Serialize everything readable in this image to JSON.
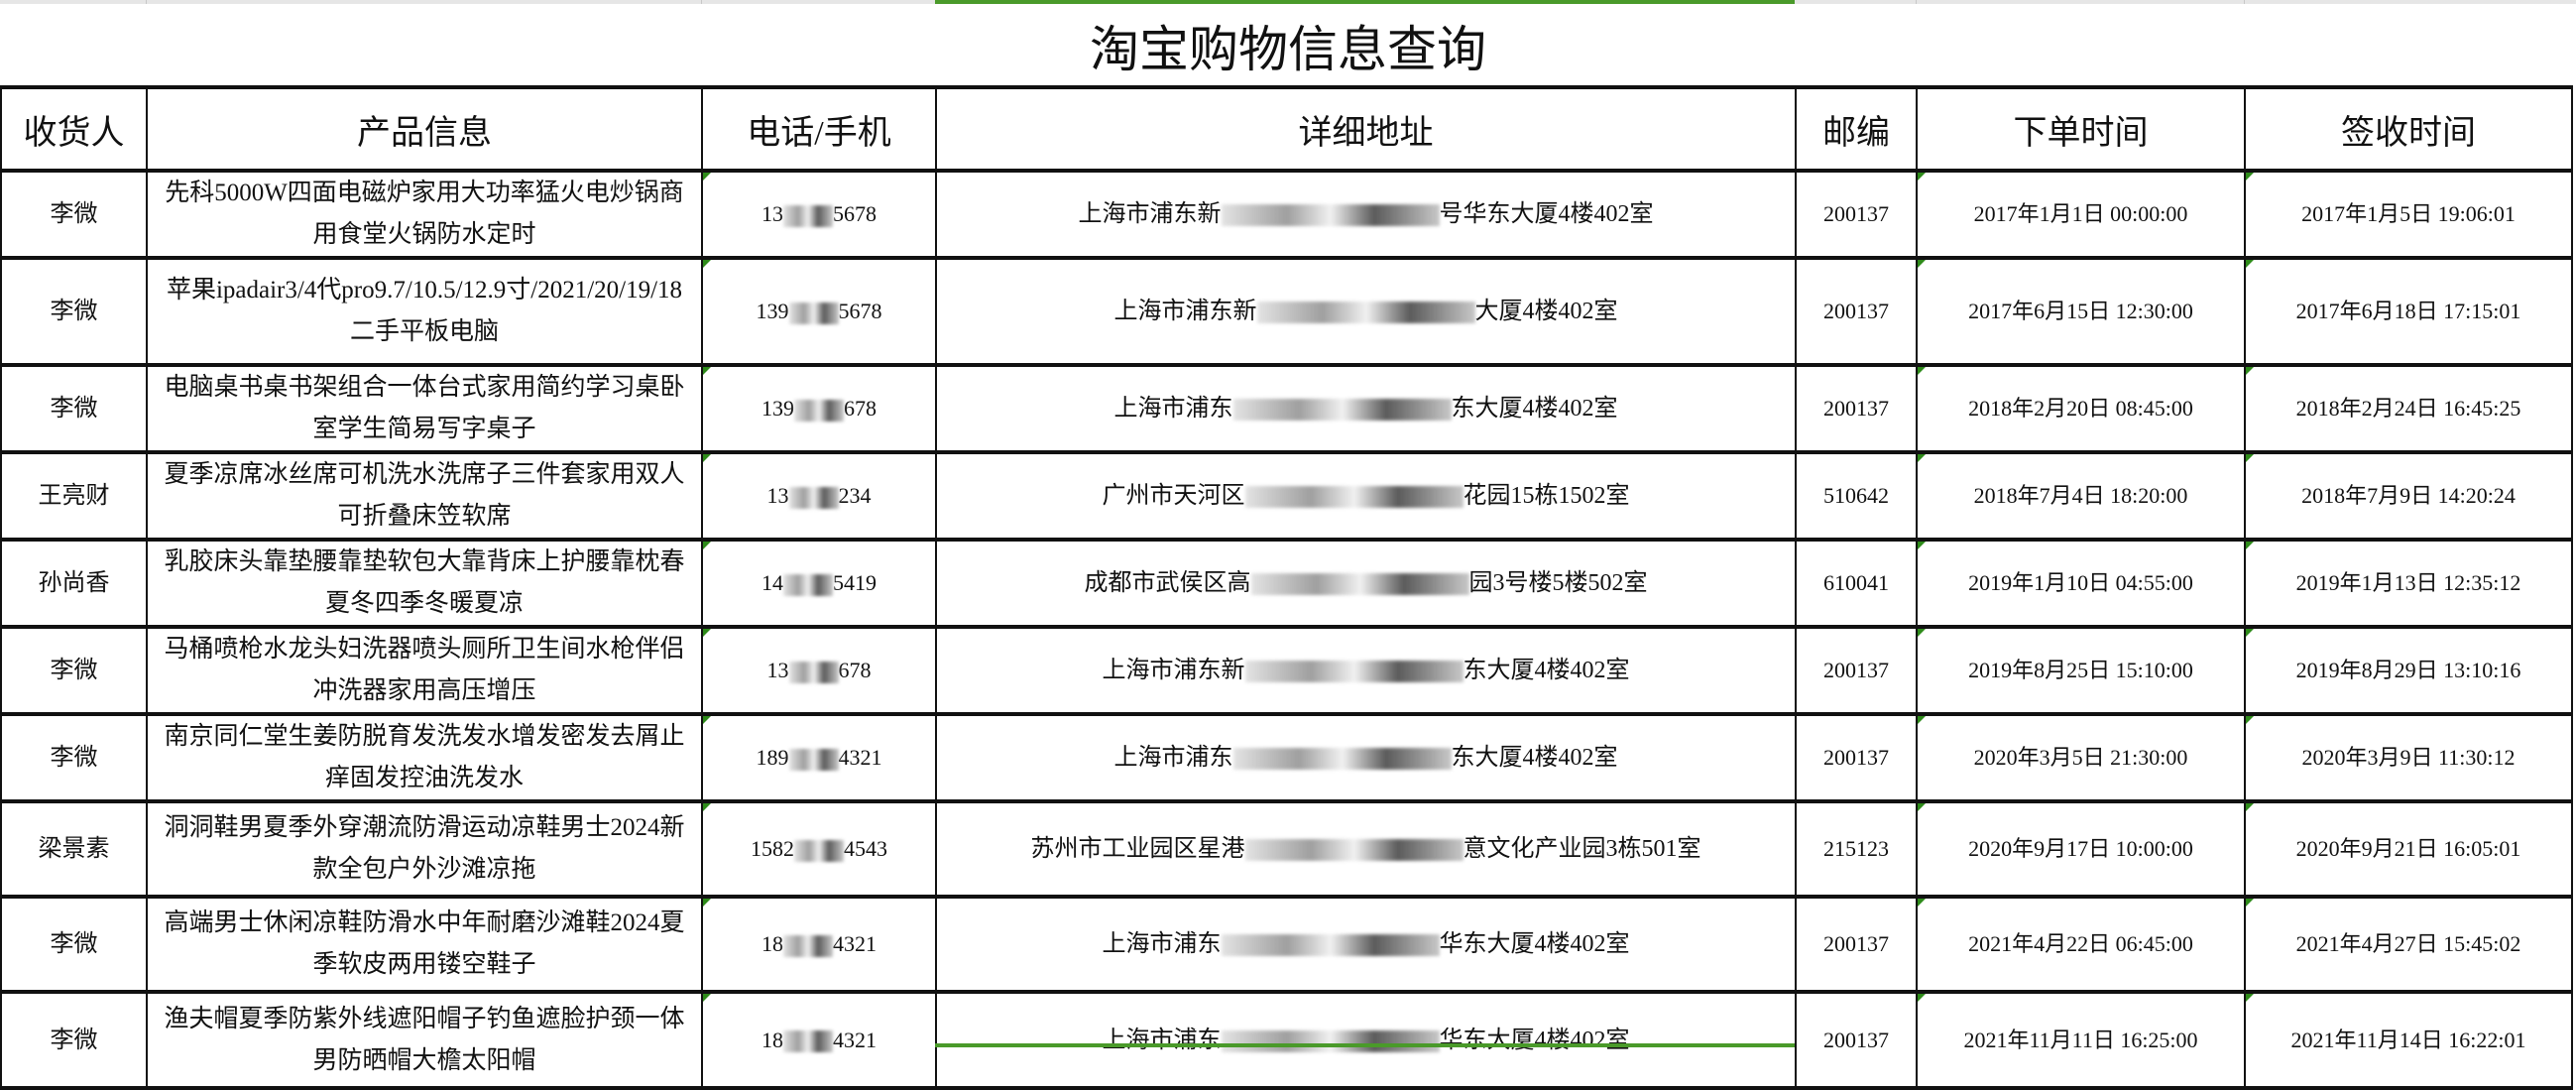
{
  "title": "淘宝购物信息查询",
  "accent_color": "#4a9a2a",
  "headers": [
    "收货人",
    "产品信息",
    "电话/手机",
    "详细地址",
    "邮编",
    "下单时间",
    "签收时间"
  ],
  "rows": [
    {
      "name": "李微",
      "product": "先科5000W四面电磁炉家用大功率猛火电炒锅商用食堂火锅防水定时",
      "phone_start": "13",
      "phone_end": "5678",
      "addr_start": "上海市浦东新",
      "addr_end": "号华东大厦4楼402室",
      "zip": "200137",
      "order_time": "2017年1月1日 00:00:00",
      "sign_time": "2017年1月5日 19:06:01"
    },
    {
      "name": "李微",
      "product": "苹果ipadair3/4代pro9.7/10.5/12.9寸/2021/20/19/18二手平板电脑",
      "phone_start": "139",
      "phone_end": "5678",
      "addr_start": "上海市浦东新",
      "addr_end": "大厦4楼402室",
      "zip": "200137",
      "order_time": "2017年6月15日 12:30:00",
      "sign_time": "2017年6月18日 17:15:01"
    },
    {
      "name": "李微",
      "product": "电脑桌书桌书架组合一体台式家用简约学习桌卧室学生简易写字桌子",
      "phone_start": "139",
      "phone_end": "678",
      "addr_start": "上海市浦东",
      "addr_end": "东大厦4楼402室",
      "zip": "200137",
      "order_time": "2018年2月20日 08:45:00",
      "sign_time": "2018年2月24日 16:45:25"
    },
    {
      "name": "王亮财",
      "product": "夏季凉席冰丝席可机洗水洗席子三件套家用双人可折叠床笠软席",
      "phone_start": "13",
      "phone_end": "234",
      "addr_start": "广州市天河区",
      "addr_end": "花园15栋1502室",
      "zip": "510642",
      "order_time": "2018年7月4日 18:20:00",
      "sign_time": "2018年7月9日 14:20:24"
    },
    {
      "name": "孙尚香",
      "product": "乳胶床头靠垫腰靠垫软包大靠背床上护腰靠枕春夏冬四季冬暖夏凉",
      "phone_start": "14",
      "phone_end": "5419",
      "addr_start": "成都市武侯区高",
      "addr_end": "园3号楼5楼502室",
      "zip": "610041",
      "order_time": "2019年1月10日 04:55:00",
      "sign_time": "2019年1月13日 12:35:12"
    },
    {
      "name": "李微",
      "product": "马桶喷枪水龙头妇洗器喷头厕所卫生间水枪伴侣冲洗器家用高压增压",
      "phone_start": "13",
      "phone_end": "678",
      "addr_start": "上海市浦东新",
      "addr_end": "东大厦4楼402室",
      "zip": "200137",
      "order_time": "2019年8月25日 15:10:00",
      "sign_time": "2019年8月29日 13:10:16"
    },
    {
      "name": "李微",
      "product": "南京同仁堂生姜防脱育发洗发水增发密发去屑止痒固发控油洗发水",
      "phone_start": "189",
      "phone_end": "4321",
      "addr_start": "上海市浦东",
      "addr_end": "东大厦4楼402室",
      "zip": "200137",
      "order_time": "2020年3月5日 21:30:00",
      "sign_time": "2020年3月9日 11:30:12"
    },
    {
      "name": "梁景素",
      "product": "洞洞鞋男夏季外穿潮流防滑运动凉鞋男士2024新款全包户外沙滩凉拖",
      "phone_start": "1582",
      "phone_end": "4543",
      "addr_start": "苏州市工业园区星港",
      "addr_end": "意文化产业园3栋501室",
      "zip": "215123",
      "order_time": "2020年9月17日 10:00:00",
      "sign_time": "2020年9月21日 16:05:01"
    },
    {
      "name": "李微",
      "product": "高端男士休闲凉鞋防滑水中年耐磨沙滩鞋2024夏季软皮两用镂空鞋子",
      "phone_start": "18",
      "phone_end": "4321",
      "addr_start": "上海市浦东",
      "addr_end": "华东大厦4楼402室",
      "zip": "200137",
      "order_time": "2021年4月22日 06:45:00",
      "sign_time": "2021年4月27日 15:45:02"
    },
    {
      "name": "李微",
      "product": "渔夫帽夏季防紫外线遮阳帽子钓鱼遮脸护颈一体男防晒帽大檐太阳帽",
      "phone_start": "18",
      "phone_end": "4321",
      "addr_start": "上海市浦东",
      "addr_end": "华东大厦4楼402室",
      "zip": "200137",
      "order_time": "2021年11月11日 16:25:00",
      "sign_time": "2021年11月14日 16:22:01"
    }
  ]
}
